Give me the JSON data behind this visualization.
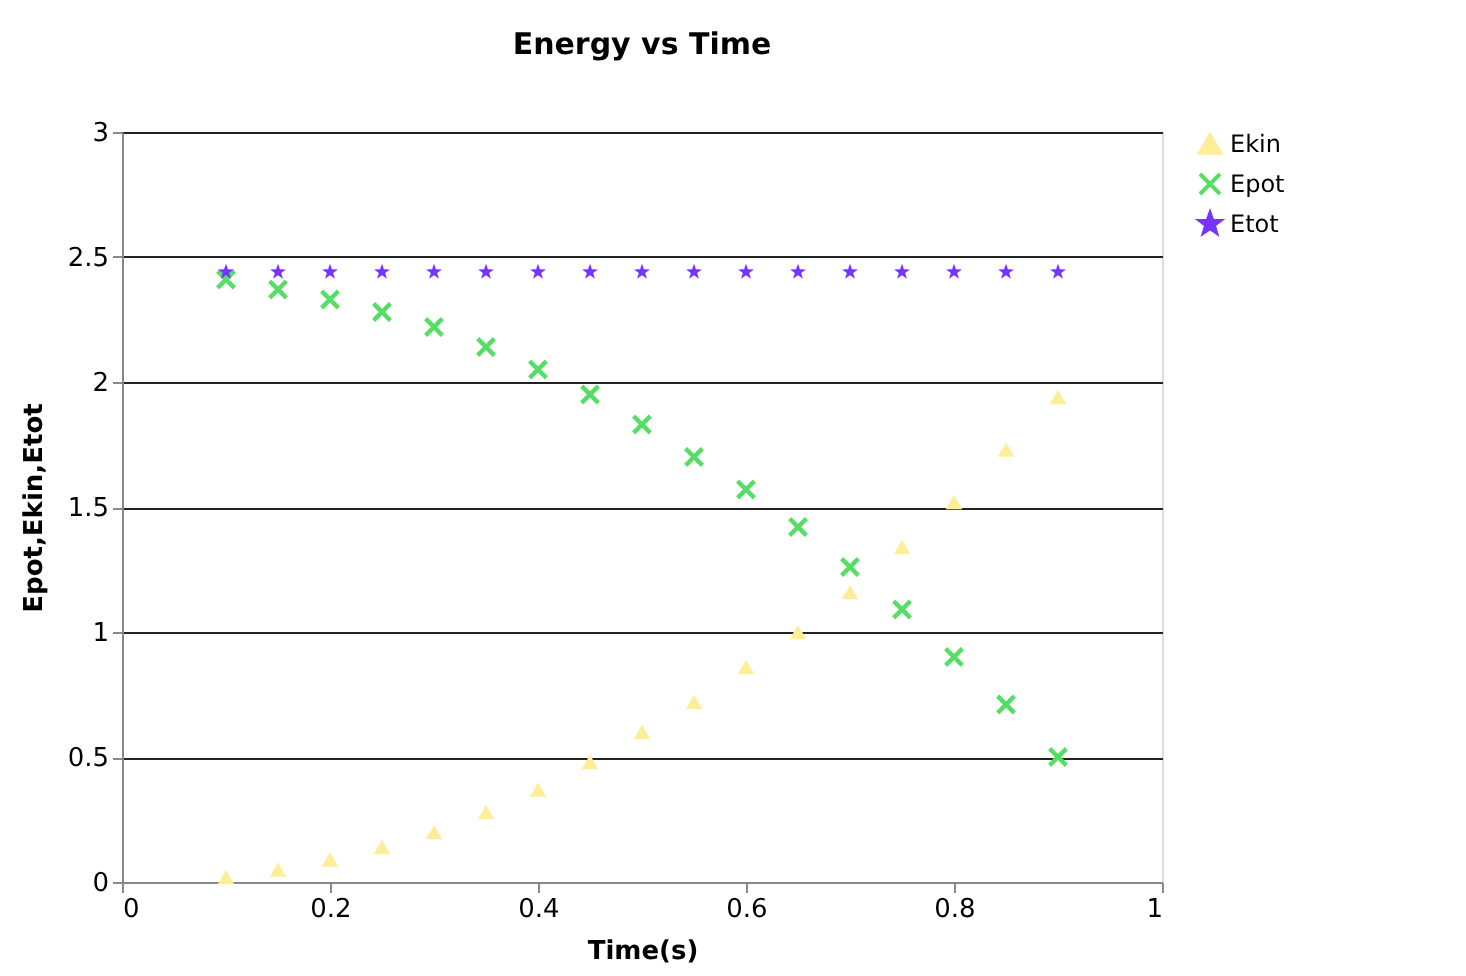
{
  "chart_data": {
    "type": "scatter",
    "title": "Energy vs Time",
    "xlabel": "Time(s)",
    "ylabel": "Epot,Ekin,Etot",
    "x": [
      0.1,
      0.15,
      0.2,
      0.25,
      0.3,
      0.35,
      0.4,
      0.45,
      0.5,
      0.55,
      0.6,
      0.65,
      0.7,
      0.75,
      0.8,
      0.85,
      0.9
    ],
    "series": [
      {
        "name": "Ekin",
        "color": "#ffee99",
        "marker": "triangle",
        "values": [
          0.02,
          0.05,
          0.09,
          0.14,
          0.2,
          0.28,
          0.37,
          0.48,
          0.6,
          0.72,
          0.86,
          1.0,
          1.16,
          1.34,
          1.52,
          1.73,
          1.94
        ]
      },
      {
        "name": "Epot",
        "color": "#55dd66",
        "marker": "cross",
        "values": [
          2.41,
          2.37,
          2.33,
          2.28,
          2.22,
          2.14,
          2.05,
          1.95,
          1.83,
          1.7,
          1.57,
          1.42,
          1.26,
          1.09,
          0.9,
          0.71,
          0.5
        ]
      },
      {
        "name": "Etot",
        "color": "#7733ff",
        "marker": "star",
        "values": [
          2.44,
          2.44,
          2.44,
          2.44,
          2.44,
          2.44,
          2.44,
          2.44,
          2.44,
          2.44,
          2.44,
          2.44,
          2.44,
          2.44,
          2.44,
          2.44,
          2.44
        ]
      }
    ],
    "xlim": [
      0,
      1
    ],
    "xticks": [
      0,
      0.2,
      0.4,
      0.6,
      0.8,
      1
    ],
    "ylim": [
      0,
      3
    ],
    "yticks": [
      0,
      0.5,
      1,
      1.5,
      2,
      2.5,
      3
    ],
    "grid": "y",
    "legend": "right"
  }
}
